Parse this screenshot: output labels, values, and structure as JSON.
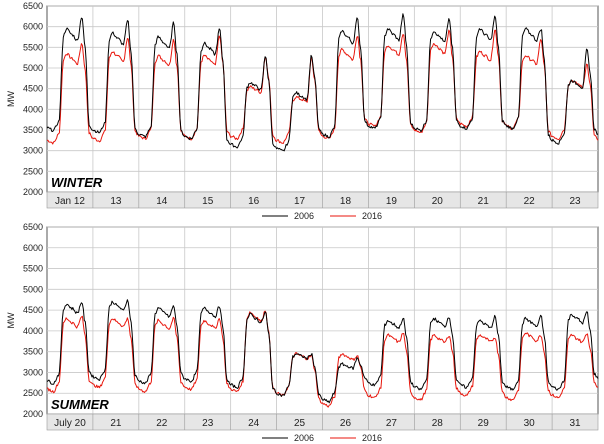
{
  "chart_data": [
    {
      "type": "line",
      "title": "WINTER",
      "ylabel": "MW",
      "ylim": [
        2000,
        6500
      ],
      "yticks": [
        2000,
        2500,
        3000,
        3500,
        4000,
        4500,
        5000,
        5500,
        6000,
        6500
      ],
      "categories": [
        "Jan 12",
        "13",
        "14",
        "15",
        "16",
        "17",
        "18",
        "19",
        "20",
        "21",
        "22",
        "23"
      ],
      "grid": true,
      "legend_placement": "bottom-right",
      "series": [
        {
          "name": "2006",
          "color": "#000000",
          "min": [
            3550,
            3500,
            3400,
            3350,
            3150,
            3050,
            3400,
            3600,
            3550,
            3600,
            3600,
            3250,
            3400
          ],
          "peak_am": [
            5950,
            5850,
            5750,
            5600,
            4650,
            4400,
            5900,
            5950,
            5900,
            5950,
            5950,
            4700
          ],
          "peak_pm": [
            6250,
            6150,
            6100,
            5950,
            5300,
            5300,
            6200,
            6300,
            6200,
            6250,
            5950,
            5450
          ]
        },
        {
          "name": "2016",
          "color": "#e8160c",
          "min": [
            3250,
            3300,
            3350,
            3350,
            3350,
            3250,
            3350,
            3650,
            3500,
            3650,
            3600,
            3350,
            3250
          ],
          "peak_am": [
            5350,
            5400,
            5300,
            5300,
            4550,
            4300,
            5450,
            5550,
            5600,
            5400,
            5300,
            4700
          ],
          "peak_pm": [
            5600,
            5750,
            5700,
            5800,
            5300,
            5250,
            5800,
            5850,
            5900,
            5950,
            5700,
            5100
          ]
        }
      ]
    },
    {
      "type": "line",
      "title": "SUMMER",
      "ylabel": "MW",
      "ylim": [
        2000,
        6500
      ],
      "yticks": [
        2000,
        2500,
        3000,
        3500,
        4000,
        4500,
        5000,
        5500,
        6000,
        6500
      ],
      "categories": [
        "July 20",
        "21",
        "22",
        "23",
        "24",
        "25",
        "26",
        "27",
        "28",
        "29",
        "30",
        "31"
      ],
      "grid": true,
      "legend_placement": "bottom-right",
      "series": [
        {
          "name": "2006",
          "color": "#000000",
          "min": [
            2800,
            2900,
            2800,
            2850,
            2700,
            2500,
            2350,
            2750,
            2650,
            2700,
            2650,
            2650,
            2850
          ],
          "peak_am": [
            4650,
            4700,
            4550,
            4550,
            4400,
            3450,
            3200,
            4250,
            4300,
            4250,
            4300,
            4400
          ],
          "peak_pm": [
            4700,
            4750,
            4600,
            4600,
            4450,
            3450,
            3350,
            4300,
            4350,
            4350,
            4350,
            4450
          ]
        },
        {
          "name": "2016",
          "color": "#e8160c",
          "min": [
            2600,
            2700,
            2600,
            2650,
            2600,
            2500,
            2250,
            2450,
            2400,
            2500,
            2400,
            2450,
            2650
          ],
          "peak_am": [
            4300,
            4300,
            4250,
            4250,
            4450,
            3450,
            3450,
            3900,
            3900,
            3900,
            3950,
            3900
          ],
          "peak_pm": [
            4350,
            4300,
            4300,
            4300,
            4500,
            3400,
            3400,
            3950,
            3900,
            3850,
            3900,
            3950
          ]
        }
      ]
    }
  ]
}
